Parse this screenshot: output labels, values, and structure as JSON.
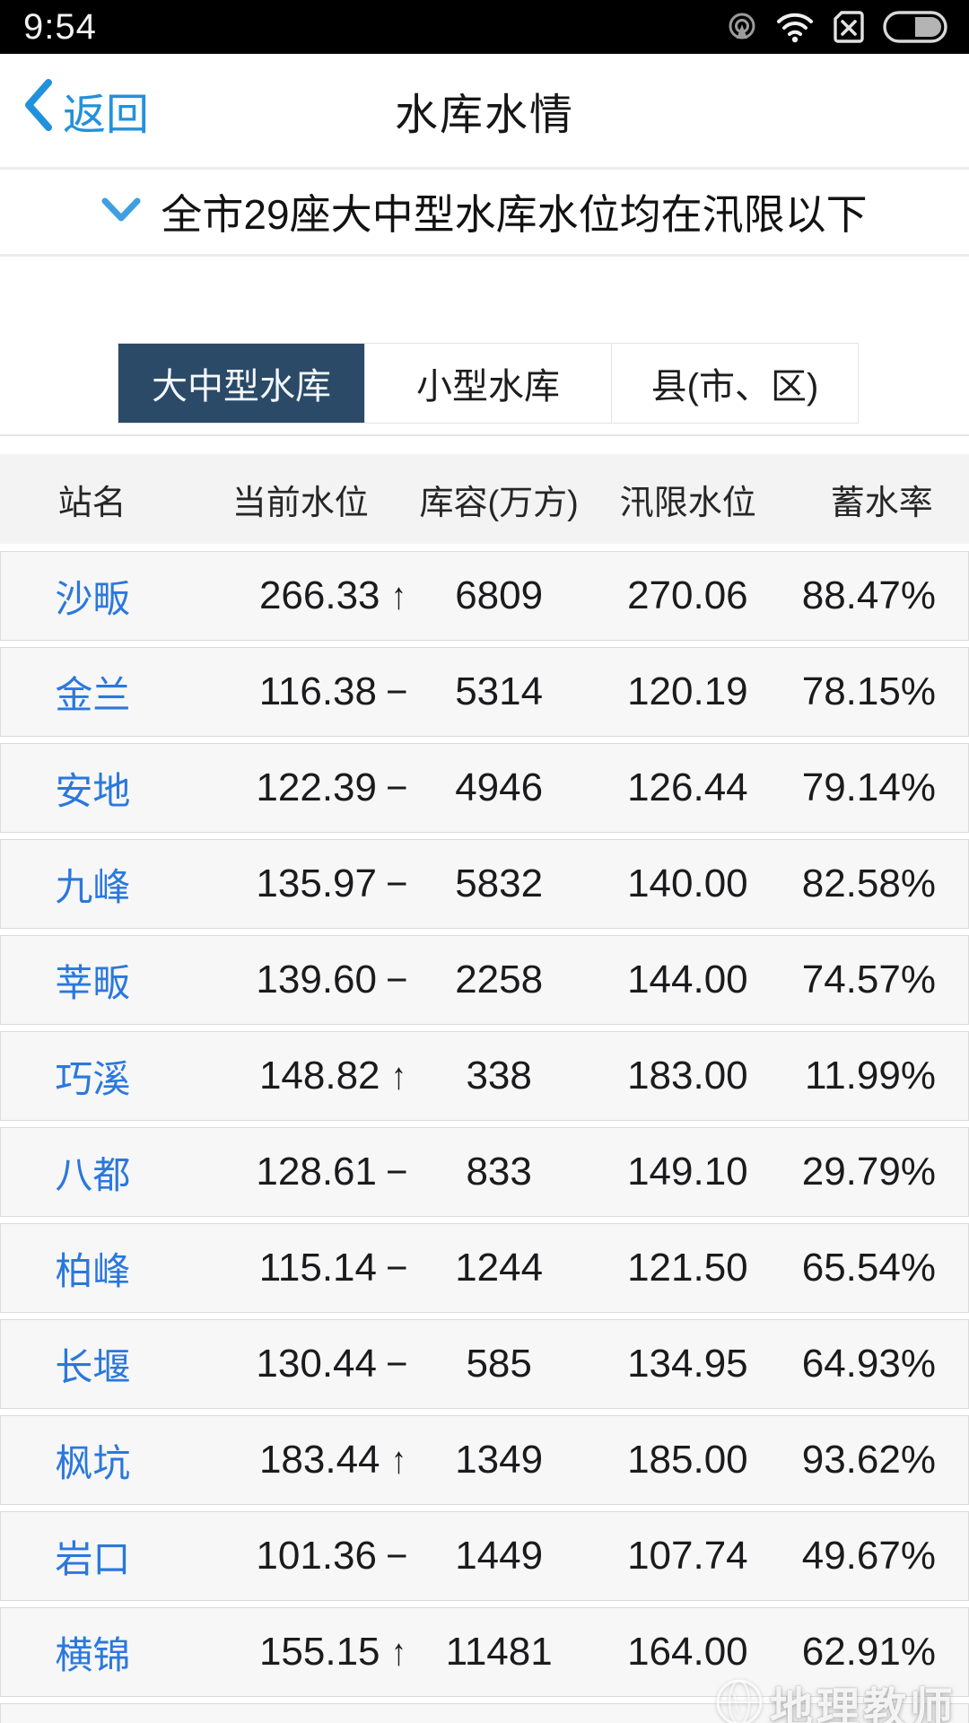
{
  "status_bar": {
    "time": "9:54",
    "icons": [
      "hotspot-icon",
      "wifi-icon",
      "sim-missing-icon",
      "battery-icon"
    ],
    "battery_fill_percent": 45
  },
  "nav_bar": {
    "back_label": "返回",
    "title": "水库水情"
  },
  "notice": {
    "text": "全市29座大中型水库水位均在汛限以下"
  },
  "tabs": [
    {
      "label": "大中型水库",
      "active": true
    },
    {
      "label": "小型水库",
      "active": false
    },
    {
      "label": "县(市、区)",
      "active": false
    }
  ],
  "table": {
    "headers": [
      "站名",
      "当前水位",
      "库容(万方)",
      "汛限水位",
      "蓄水率"
    ],
    "rows": [
      {
        "name": "沙畈",
        "level": "266.33",
        "trend": "up",
        "capacity": "6809",
        "limit": "270.06",
        "rate": "88.47%"
      },
      {
        "name": "金兰",
        "level": "116.38",
        "trend": "flat",
        "capacity": "5314",
        "limit": "120.19",
        "rate": "78.15%"
      },
      {
        "name": "安地",
        "level": "122.39",
        "trend": "flat",
        "capacity": "4946",
        "limit": "126.44",
        "rate": "79.14%"
      },
      {
        "name": "九峰",
        "level": "135.97",
        "trend": "flat",
        "capacity": "5832",
        "limit": "140.00",
        "rate": "82.58%"
      },
      {
        "name": "莘畈",
        "level": "139.60",
        "trend": "flat",
        "capacity": "2258",
        "limit": "144.00",
        "rate": "74.57%"
      },
      {
        "name": "巧溪",
        "level": "148.82",
        "trend": "up",
        "capacity": "338",
        "limit": "183.00",
        "rate": "11.99%"
      },
      {
        "name": "八都",
        "level": "128.61",
        "trend": "flat",
        "capacity": "833",
        "limit": "149.10",
        "rate": "29.79%"
      },
      {
        "name": "柏峰",
        "level": "115.14",
        "trend": "flat",
        "capacity": "1244",
        "limit": "121.50",
        "rate": "65.54%"
      },
      {
        "name": "长堰",
        "level": "130.44",
        "trend": "flat",
        "capacity": "585",
        "limit": "134.95",
        "rate": "64.93%"
      },
      {
        "name": "枫坑",
        "level": "183.44",
        "trend": "up",
        "capacity": "1349",
        "limit": "185.00",
        "rate": "93.62%"
      },
      {
        "name": "岩口",
        "level": "101.36",
        "trend": "flat",
        "capacity": "1449",
        "limit": "107.74",
        "rate": "49.67%"
      },
      {
        "name": "横锦",
        "level": "155.15",
        "trend": "up",
        "capacity": "11481",
        "limit": "164.00",
        "rate": "62.91%"
      }
    ]
  },
  "watermark": {
    "text": "地理教师"
  },
  "colors": {
    "accent_blue": "#2191dd",
    "station_blue": "#2a78dc",
    "tab_dark": "#2b4a68"
  }
}
